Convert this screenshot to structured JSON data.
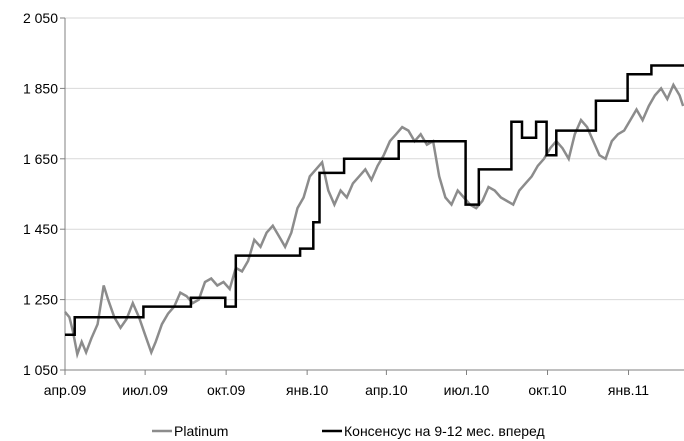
{
  "chart_data": {
    "type": "line",
    "title": "",
    "xlabel": "",
    "ylabel": "",
    "ylim": [
      1050,
      2050
    ],
    "y_ticks": [
      1050,
      1250,
      1450,
      1650,
      1850,
      2050
    ],
    "y_tick_labels": [
      "1 050",
      "1 250",
      "1 450",
      "1 650",
      "1 850",
      "2 050"
    ],
    "x_range": [
      "2009-04-01",
      "2011-03-05"
    ],
    "x_ticks": [
      "2009-04-01",
      "2009-07-01",
      "2009-10-01",
      "2010-01-01",
      "2010-04-01",
      "2010-07-01",
      "2010-10-01",
      "2011-01-01"
    ],
    "x_tick_labels": [
      "апр.09",
      "июл.09",
      "окт.09",
      "янв.10",
      "апр.10",
      "июл.10",
      "окт.10",
      "янв.11"
    ],
    "grid": "horizontal",
    "legend_position": "bottom",
    "colors": {
      "platinum": "#8c8c8c",
      "consensus": "#000000",
      "grid": "#d9d9d9",
      "axis": "#808080"
    },
    "series": [
      {
        "name": "Platinum",
        "x": [
          "2009-04-01",
          "2009-04-06",
          "2009-04-10",
          "2009-04-15",
          "2009-04-20",
          "2009-04-25",
          "2009-05-01",
          "2009-05-08",
          "2009-05-15",
          "2009-05-20",
          "2009-05-27",
          "2009-06-03",
          "2009-06-10",
          "2009-06-17",
          "2009-06-24",
          "2009-07-01",
          "2009-07-08",
          "2009-07-13",
          "2009-07-20",
          "2009-07-27",
          "2009-08-03",
          "2009-08-10",
          "2009-08-17",
          "2009-08-24",
          "2009-08-31",
          "2009-09-07",
          "2009-09-14",
          "2009-09-21",
          "2009-09-28",
          "2009-10-05",
          "2009-10-12",
          "2009-10-19",
          "2009-10-26",
          "2009-11-02",
          "2009-11-09",
          "2009-11-16",
          "2009-11-23",
          "2009-11-30",
          "2009-12-07",
          "2009-12-14",
          "2009-12-21",
          "2009-12-28",
          "2010-01-04",
          "2010-01-11",
          "2010-01-18",
          "2010-01-25",
          "2010-02-01",
          "2010-02-08",
          "2010-02-15",
          "2010-02-22",
          "2010-03-01",
          "2010-03-08",
          "2010-03-15",
          "2010-03-22",
          "2010-03-29",
          "2010-04-05",
          "2010-04-12",
          "2010-04-19",
          "2010-04-26",
          "2010-05-03",
          "2010-05-10",
          "2010-05-17",
          "2010-05-24",
          "2010-05-31",
          "2010-06-07",
          "2010-06-14",
          "2010-06-21",
          "2010-06-28",
          "2010-07-05",
          "2010-07-12",
          "2010-07-19",
          "2010-07-26",
          "2010-08-02",
          "2010-08-09",
          "2010-08-16",
          "2010-08-23",
          "2010-08-30",
          "2010-09-06",
          "2010-09-13",
          "2010-09-20",
          "2010-09-27",
          "2010-10-04",
          "2010-10-11",
          "2010-10-18",
          "2010-10-25",
          "2010-11-01",
          "2010-11-08",
          "2010-11-15",
          "2010-11-22",
          "2010-11-29",
          "2010-12-06",
          "2010-12-13",
          "2010-12-20",
          "2010-12-27",
          "2011-01-03",
          "2011-01-10",
          "2011-01-17",
          "2011-01-24",
          "2011-01-31",
          "2011-02-07",
          "2011-02-14",
          "2011-02-21",
          "2011-02-28",
          "2011-03-04"
        ],
        "values": [
          1215,
          1200,
          1160,
          1095,
          1130,
          1100,
          1140,
          1180,
          1290,
          1250,
          1200,
          1170,
          1195,
          1240,
          1200,
          1150,
          1100,
          1130,
          1180,
          1210,
          1230,
          1270,
          1260,
          1240,
          1250,
          1300,
          1310,
          1290,
          1300,
          1280,
          1340,
          1330,
          1360,
          1420,
          1400,
          1440,
          1460,
          1430,
          1400,
          1440,
          1510,
          1540,
          1600,
          1620,
          1640,
          1560,
          1520,
          1560,
          1540,
          1580,
          1600,
          1620,
          1590,
          1630,
          1660,
          1700,
          1720,
          1740,
          1730,
          1700,
          1720,
          1690,
          1700,
          1600,
          1540,
          1520,
          1560,
          1540,
          1520,
          1510,
          1530,
          1570,
          1560,
          1540,
          1530,
          1520,
          1560,
          1580,
          1600,
          1630,
          1650,
          1680,
          1700,
          1680,
          1650,
          1720,
          1760,
          1740,
          1700,
          1660,
          1650,
          1700,
          1720,
          1730,
          1760,
          1790,
          1760,
          1800,
          1830,
          1850,
          1820,
          1860,
          1830,
          1800
        ]
      },
      {
        "name": "Консенсус на 9-12 мес. вперед",
        "x": [
          "2009-04-01",
          "2009-04-12",
          "2009-04-12",
          "2009-06-29",
          "2009-06-29",
          "2009-08-22",
          "2009-08-22",
          "2009-09-30",
          "2009-09-30",
          "2009-10-12",
          "2009-10-12",
          "2009-10-16",
          "2009-10-16",
          "2009-12-24",
          "2009-12-24",
          "2010-01-08",
          "2010-01-08",
          "2010-01-15",
          "2010-01-15",
          "2010-02-12",
          "2010-02-12",
          "2010-04-15",
          "2010-04-15",
          "2010-06-30",
          "2010-06-30",
          "2010-07-15",
          "2010-07-15",
          "2010-08-21",
          "2010-08-21",
          "2010-09-02",
          "2010-09-02",
          "2010-09-18",
          "2010-09-18",
          "2010-09-30",
          "2010-09-30",
          "2010-10-11",
          "2010-10-11",
          "2010-11-25",
          "2010-11-25",
          "2010-12-31",
          "2010-12-31",
          "2011-01-27",
          "2011-01-27",
          "2011-03-05"
        ],
        "values": [
          1150,
          1150,
          1200,
          1200,
          1230,
          1230,
          1255,
          1255,
          1230,
          1230,
          1375,
          1375,
          1375,
          1375,
          1395,
          1395,
          1470,
          1470,
          1610,
          1610,
          1650,
          1650,
          1700,
          1700,
          1520,
          1520,
          1620,
          1620,
          1755,
          1755,
          1710,
          1710,
          1755,
          1755,
          1660,
          1660,
          1730,
          1730,
          1815,
          1815,
          1890,
          1890,
          1915,
          1915
        ]
      }
    ]
  }
}
